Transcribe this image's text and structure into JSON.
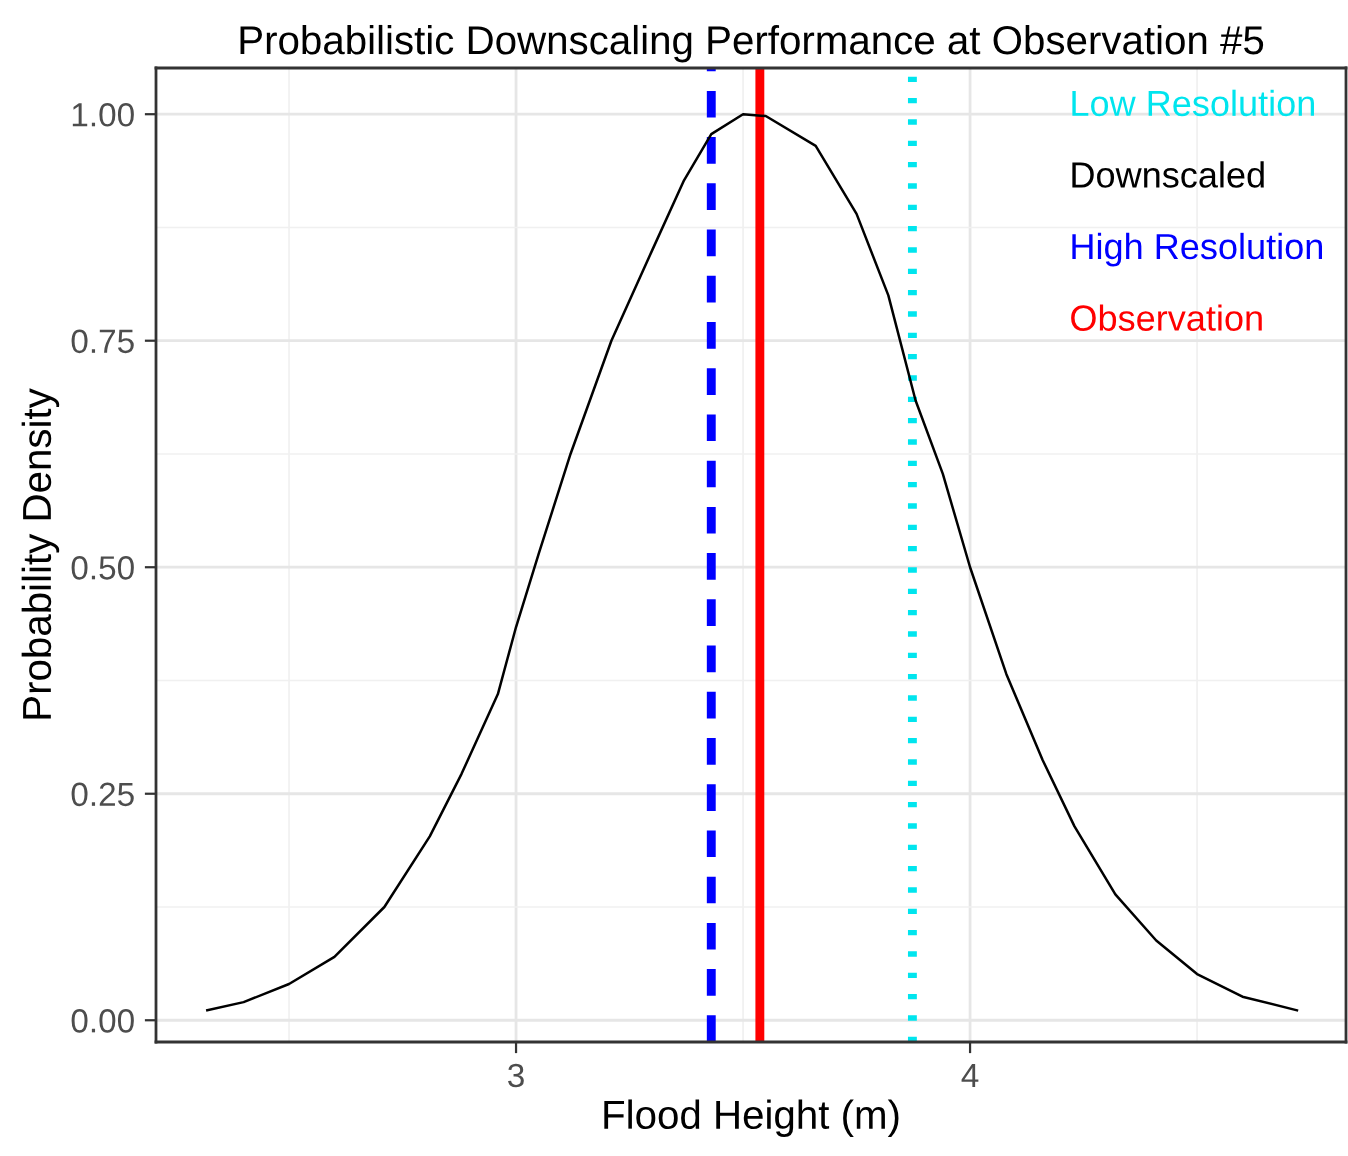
{
  "chart_data": {
    "type": "line",
    "title": "Probabilistic Downscaling Performance at Observation #5",
    "xlabel": "Flood Height (m)",
    "ylabel": "Probability Density",
    "series": [
      {
        "name": "Downscaled",
        "color": "#000000",
        "x": [
          2.32,
          2.4,
          2.5,
          2.6,
          2.71,
          2.81,
          2.88,
          2.96,
          3.0,
          3.05,
          3.12,
          3.21,
          3.3,
          3.37,
          3.43,
          3.5,
          3.55,
          3.66,
          3.75,
          3.82,
          3.88,
          3.94,
          4.0,
          4.08,
          4.16,
          4.23,
          4.32,
          4.41,
          4.5,
          4.6,
          4.72
        ],
        "values": [
          0.011,
          0.02,
          0.04,
          0.07,
          0.125,
          0.203,
          0.272,
          0.36,
          0.434,
          0.515,
          0.625,
          0.75,
          0.85,
          0.927,
          0.978,
          1.0,
          0.998,
          0.965,
          0.89,
          0.8,
          0.684,
          0.603,
          0.5,
          0.382,
          0.287,
          0.214,
          0.139,
          0.088,
          0.051,
          0.026,
          0.011
        ]
      }
    ],
    "ref_lines": [
      {
        "axis": "x",
        "value": 3.873,
        "label": "Low Resolution",
        "color": "#00e5ee",
        "line_style": "dotted"
      },
      {
        "axis": "x",
        "value": 3.43,
        "label": "High Resolution",
        "color": "#0000ff",
        "line_style": "dashed"
      },
      {
        "axis": "x",
        "value": 3.537,
        "label": "Observation",
        "color": "#ff0000",
        "line_style": "solid"
      }
    ],
    "xlim": [
      2.207,
      4.828
    ],
    "xticks": [
      3,
      4
    ],
    "ylim": [
      -0.024,
      1.051
    ],
    "yticks": [
      {
        "value": 0,
        "label": "0.00"
      },
      {
        "value": 0.25,
        "label": "0.25"
      },
      {
        "value": 0.5,
        "label": "0.50"
      },
      {
        "value": 0.75,
        "label": "0.75"
      },
      {
        "value": 1,
        "label": "1.00"
      }
    ],
    "grid": true,
    "legend": "top right",
    "marker": "none",
    "line_style": "solid"
  }
}
